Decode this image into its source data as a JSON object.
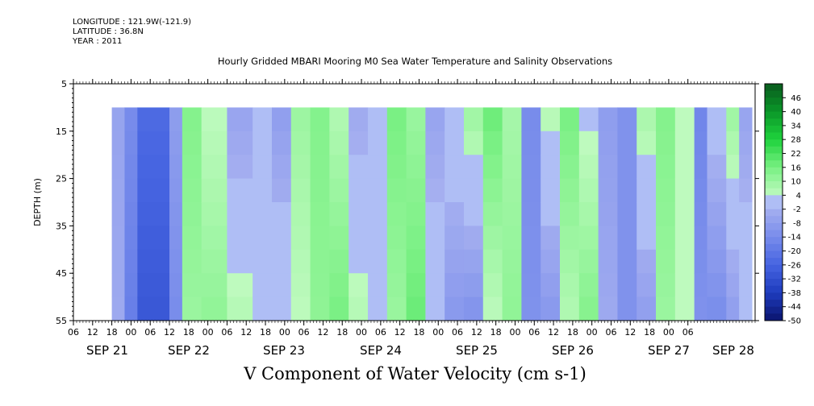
{
  "header": {
    "longitude": "LONGITUDE : 121.9W(-121.9)",
    "latitude": "LATITUDE : 36.8N",
    "year": "YEAR : 2011"
  },
  "chart_data": {
    "type": "heatmap",
    "title": "Hourly Gridded MBARI Mooring M0 Sea Water Temperature and Salinity Observations",
    "xlabel": "V Component of Water Velocity (cm s-1)",
    "ylabel": "DEPTH (m)",
    "ylim": [
      55,
      5
    ],
    "y_ticks": [
      5,
      15,
      25,
      35,
      45,
      55
    ],
    "data_depth_range": [
      10,
      55
    ],
    "x_hour_ticks": [
      "06",
      "12",
      "18",
      "00",
      "06",
      "12",
      "18",
      "00",
      "06",
      "12",
      "18",
      "00",
      "06",
      "12",
      "18",
      "00",
      "06",
      "12",
      "18",
      "00",
      "06",
      "12",
      "18",
      "00",
      "06",
      "12",
      "18",
      "00",
      "06",
      "12",
      "18",
      "00",
      "06"
    ],
    "x_date_labels": [
      "SEP 21",
      "SEP 22",
      "SEP 23",
      "SEP 24",
      "SEP 25",
      "SEP 26",
      "SEP 27",
      "SEP 28"
    ],
    "colorbar": {
      "labels": [
        "46",
        "40",
        "34",
        "28",
        "22",
        "16",
        "10",
        "4",
        "-2",
        "-8",
        "-14",
        "-20",
        "-26",
        "-32",
        "-38",
        "-44",
        "-50"
      ],
      "range": [
        -50,
        52
      ],
      "levels": 34
    },
    "velocity_bands": [
      {
        "start_hour": 12,
        "end_hour": 16,
        "surface": -6,
        "bottom": -4
      },
      {
        "start_hour": 16,
        "end_hour": 20,
        "surface": -14,
        "bottom": -18
      },
      {
        "start_hour": 20,
        "end_hour": 30,
        "surface": -24,
        "bottom": -30
      },
      {
        "start_hour": 30,
        "end_hour": 34,
        "surface": -8,
        "bottom": -14
      },
      {
        "start_hour": 34,
        "end_hour": 40,
        "surface": 14,
        "bottom": 10
      },
      {
        "start_hour": 40,
        "end_hour": 48,
        "surface": 4,
        "bottom": 12
      },
      {
        "start_hour": 48,
        "end_hour": 56,
        "surface": -6,
        "bottom": 6
      },
      {
        "start_hour": 56,
        "end_hour": 62,
        "surface": 2,
        "bottom": 2
      },
      {
        "start_hour": 62,
        "end_hour": 68,
        "surface": -8,
        "bottom": 4
      },
      {
        "start_hour": 68,
        "end_hour": 74,
        "surface": 10,
        "bottom": 4
      },
      {
        "start_hour": 74,
        "end_hour": 80,
        "surface": 14,
        "bottom": 12
      },
      {
        "start_hour": 80,
        "end_hour": 86,
        "surface": 6,
        "bottom": 16
      },
      {
        "start_hour": 86,
        "end_hour": 92,
        "surface": -4,
        "bottom": 6
      },
      {
        "start_hour": 92,
        "end_hour": 98,
        "surface": 4,
        "bottom": 2
      },
      {
        "start_hour": 98,
        "end_hour": 104,
        "surface": 16,
        "bottom": 10
      },
      {
        "start_hour": 104,
        "end_hour": 110,
        "surface": 10,
        "bottom": 18
      },
      {
        "start_hour": 110,
        "end_hour": 116,
        "surface": -6,
        "bottom": 4
      },
      {
        "start_hour": 116,
        "end_hour": 122,
        "surface": 4,
        "bottom": -10
      },
      {
        "start_hour": 122,
        "end_hour": 128,
        "surface": 10,
        "bottom": -12
      },
      {
        "start_hour": 128,
        "end_hour": 134,
        "surface": 18,
        "bottom": 4
      },
      {
        "start_hour": 134,
        "end_hour": 140,
        "surface": 8,
        "bottom": 12
      },
      {
        "start_hour": 140,
        "end_hour": 146,
        "surface": -14,
        "bottom": -12
      },
      {
        "start_hour": 146,
        "end_hour": 152,
        "surface": 6,
        "bottom": -10
      },
      {
        "start_hour": 152,
        "end_hour": 158,
        "surface": 16,
        "bottom": 6
      },
      {
        "start_hour": 158,
        "end_hour": 164,
        "surface": 2,
        "bottom": 14
      },
      {
        "start_hour": 164,
        "end_hour": 170,
        "surface": -8,
        "bottom": -4
      },
      {
        "start_hour": 170,
        "end_hour": 176,
        "surface": -12,
        "bottom": -12
      },
      {
        "start_hour": 176,
        "end_hour": 182,
        "surface": 8,
        "bottom": -8
      },
      {
        "start_hour": 182,
        "end_hour": 188,
        "surface": 14,
        "bottom": 10
      },
      {
        "start_hour": 188,
        "end_hour": 194,
        "surface": 4,
        "bottom": 4
      },
      {
        "start_hour": 194,
        "end_hour": 198,
        "surface": -16,
        "bottom": -12
      },
      {
        "start_hour": 198,
        "end_hour": 204,
        "surface": 2,
        "bottom": -14
      },
      {
        "start_hour": 204,
        "end_hour": 208,
        "surface": 10,
        "bottom": -8
      },
      {
        "start_hour": 208,
        "end_hour": 212,
        "surface": -6,
        "bottom": 4
      }
    ]
  }
}
